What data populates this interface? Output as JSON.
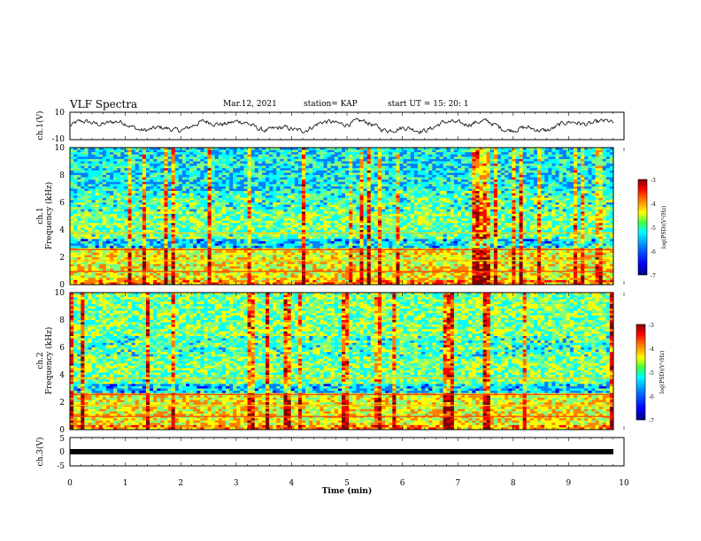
{
  "header": {
    "title": "VLF Spectra",
    "date": "Mar.12, 2021",
    "station": "station= KAP",
    "start": "start  UT =   15: 20: 1"
  },
  "colors": {
    "trace": "#000000",
    "colormap": [
      "#00008f",
      "#0000ff",
      "#0080ff",
      "#00ffff",
      "#80ff80",
      "#ffff00",
      "#ff8000",
      "#ff0000",
      "#800000"
    ]
  },
  "chart_data": [
    {
      "type": "line",
      "name": "ch1-waveform",
      "ylabel": "ch.1(V)",
      "ylim": [
        -10,
        10
      ],
      "yticks": [
        "10",
        "-10"
      ],
      "xlim": [
        0,
        10
      ]
    },
    {
      "type": "heatmap",
      "name": "ch1-spectrogram",
      "ylabel_top": "ch.1",
      "ylabel": "Frequency (kHz)",
      "ylim": [
        0,
        10
      ],
      "yticks": [
        "0",
        "2",
        "4",
        "6",
        "8",
        "10"
      ],
      "xlim": [
        0,
        10
      ],
      "colorbar": {
        "label": "log(PSD)(V²/Hz)",
        "range": [
          -7,
          -3
        ],
        "ticks": [
          "-3",
          "-4",
          "-5",
          "-6",
          "-7"
        ]
      }
    },
    {
      "type": "heatmap",
      "name": "ch2-spectrogram",
      "ylabel_top": "ch.2",
      "ylabel": "Frequency (kHz)",
      "ylim": [
        0,
        10
      ],
      "yticks": [
        "0",
        "2",
        "4",
        "6",
        "8",
        "10"
      ],
      "xlim": [
        0,
        10
      ],
      "colorbar": {
        "label": "log(PSD)(V²/Hz)",
        "range": [
          -7,
          -3
        ],
        "ticks": [
          "-3",
          "-4",
          "-5",
          "-6",
          "-7"
        ]
      }
    },
    {
      "type": "line",
      "name": "ch3-waveform",
      "ylabel": "ch.3(V)",
      "ylim": [
        -5,
        5
      ],
      "yticks": [
        "5",
        "0",
        "-5"
      ],
      "xlim": [
        0,
        10
      ],
      "xlabel": "Time (min)",
      "xticks": [
        "0",
        "1",
        "2",
        "3",
        "4",
        "5",
        "6",
        "7",
        "8",
        "9",
        "10"
      ]
    }
  ]
}
